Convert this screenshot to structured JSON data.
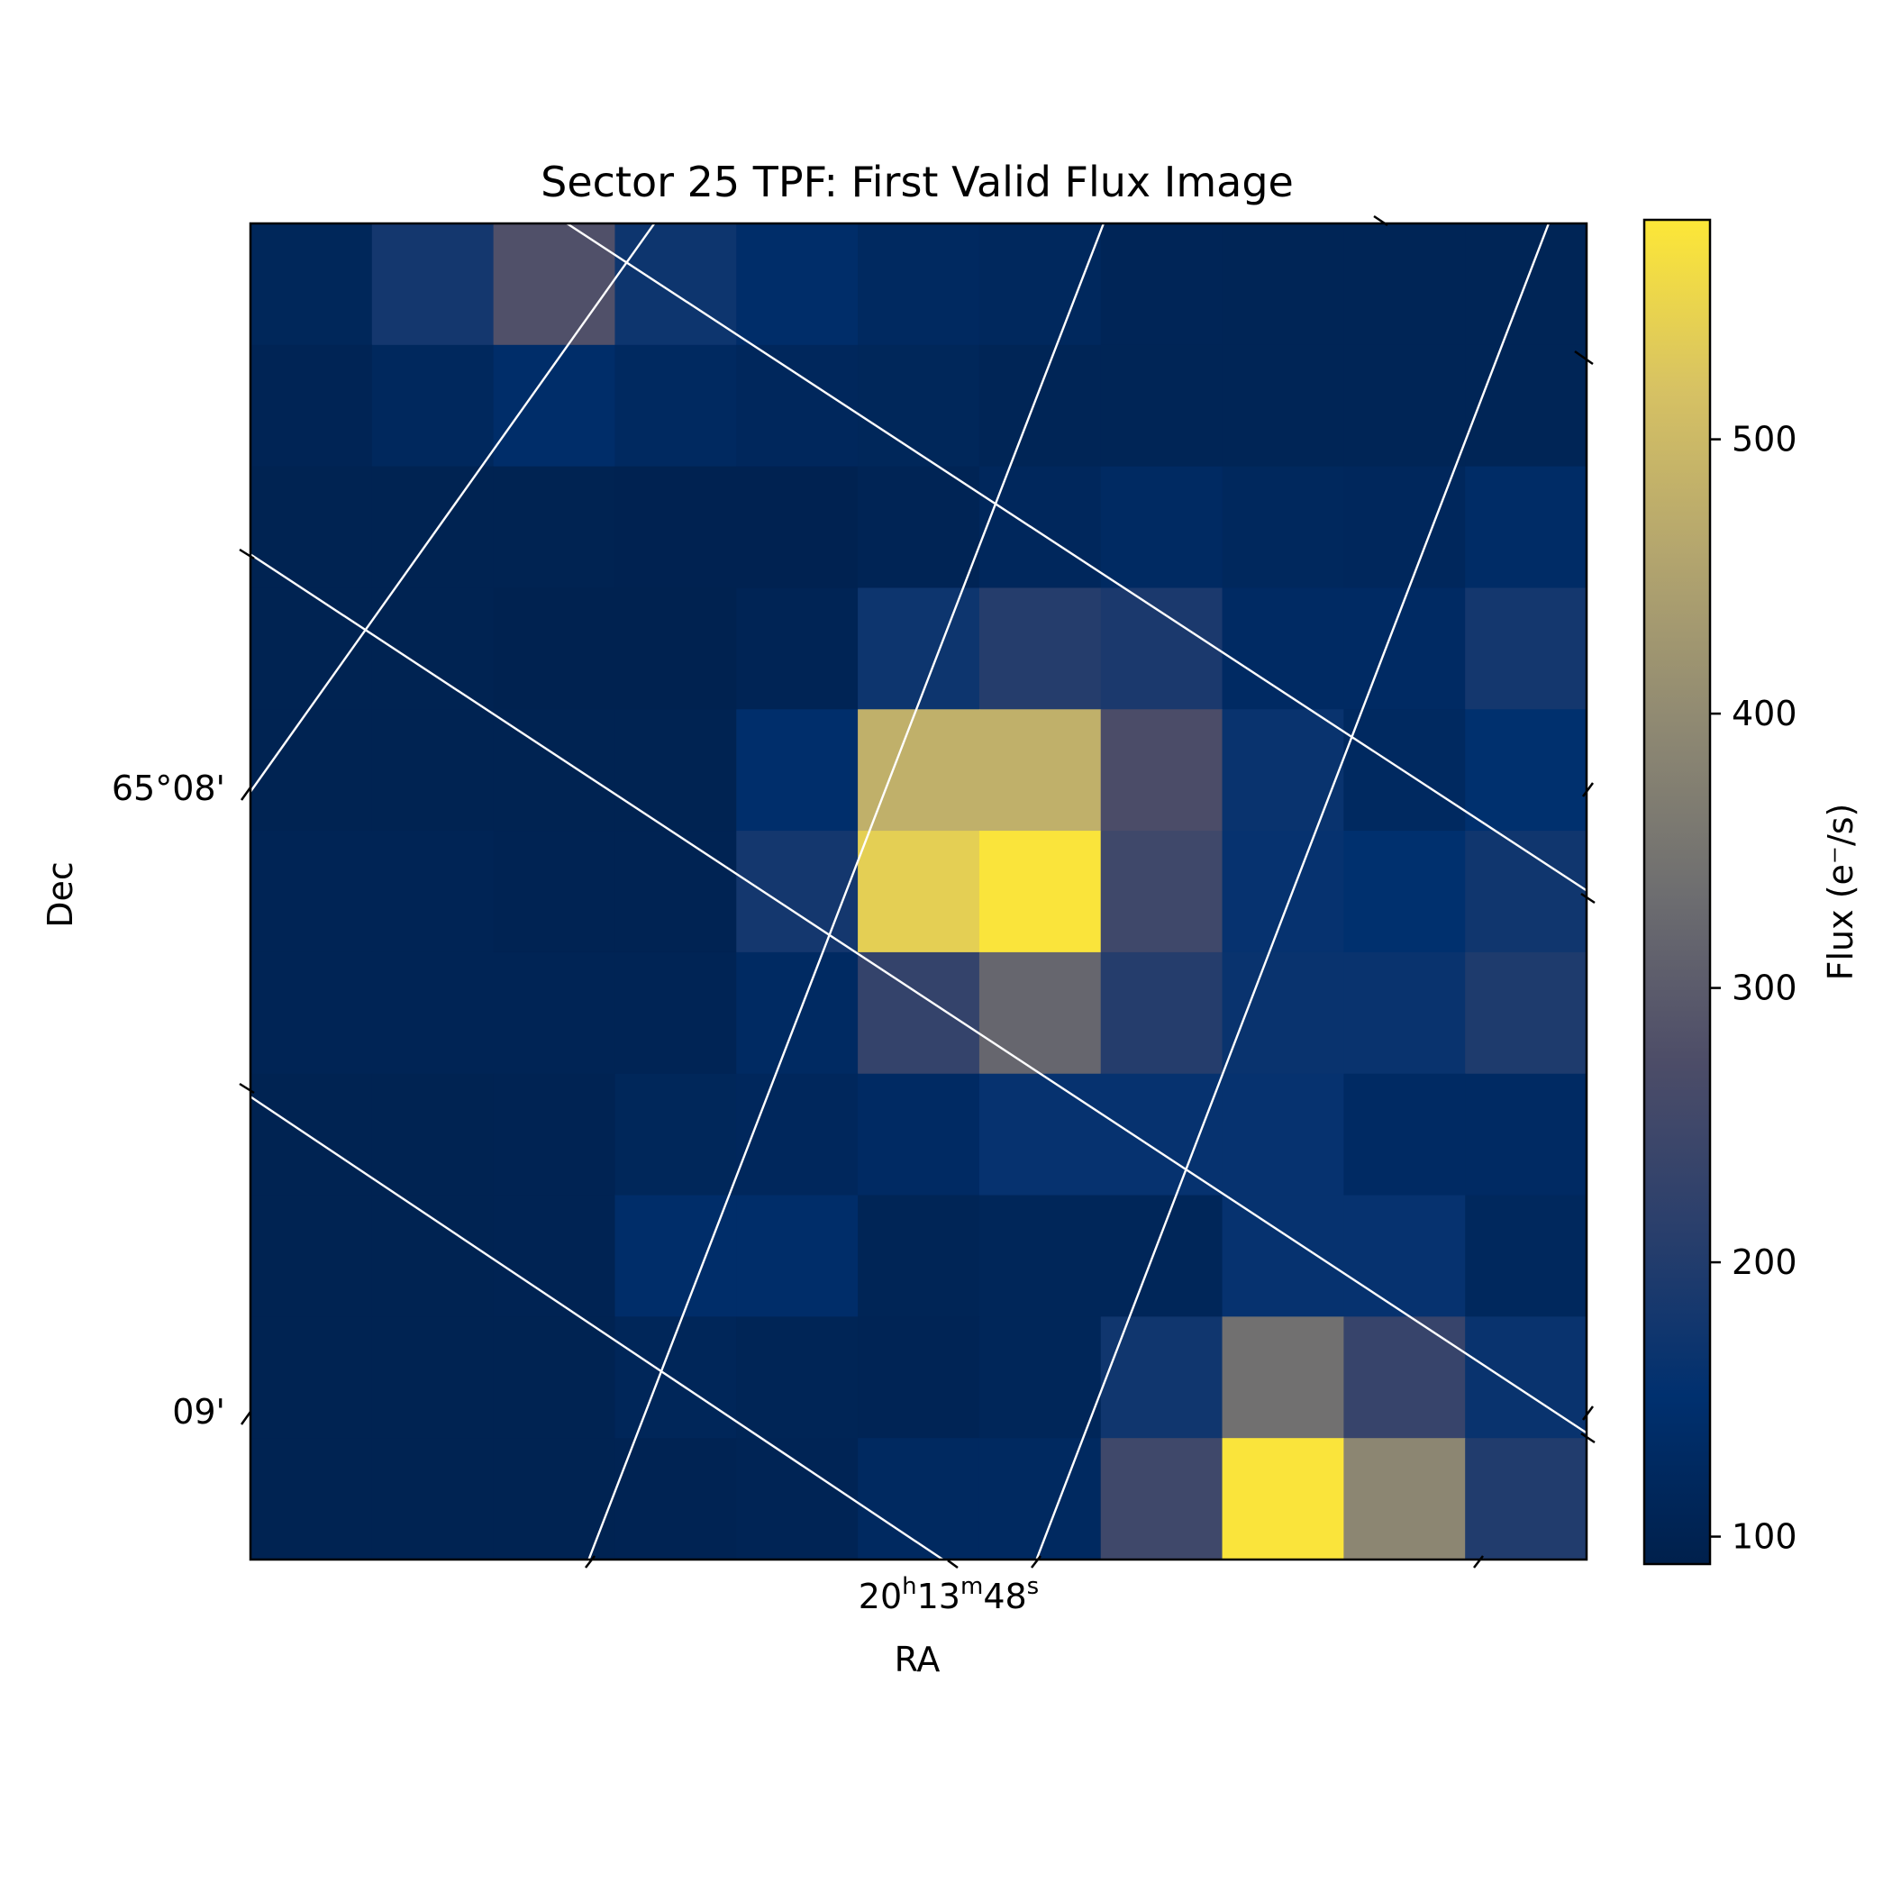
{
  "chart_data": {
    "type": "heatmap",
    "title": "Sector 25 TPF: First Valid Flux Image",
    "xlabel": "RA",
    "ylabel": "Dec",
    "x_tick_labels": [
      {
        "main": "20",
        "h": "h",
        "m_val": "13",
        "m": "m",
        "s_val": "48",
        "s": "s"
      }
    ],
    "y_tick_labels": [
      "65°08'",
      "09'"
    ],
    "colorbar": {
      "label": "Flux (e⁻/s)",
      "range": [
        90,
        580
      ],
      "ticks": [
        "100",
        "200",
        "300",
        "400",
        "500"
      ],
      "tick_values": [
        100,
        200,
        300,
        400,
        500
      ]
    },
    "colormap": "cividis",
    "colormap_stops": [
      "#00204c",
      "#00306f",
      "#2a3f6c",
      "#4d4d68",
      "#6e6e70",
      "#8f8972",
      "#b3a56e",
      "#d7c263",
      "#fde737"
    ],
    "grid": "on",
    "grid_color": "#ffffff",
    "rows": 11,
    "cols": 11,
    "values": [
      [
        115,
        180,
        280,
        170,
        140,
        125,
        120,
        110,
        108,
        108,
        108
      ],
      [
        105,
        120,
        140,
        125,
        118,
        115,
        108,
        108,
        108,
        108,
        108
      ],
      [
        100,
        100,
        100,
        98,
        98,
        105,
        118,
        128,
        120,
        118,
        135
      ],
      [
        100,
        100,
        97,
        97,
        105,
        170,
        205,
        190,
        130,
        130,
        180
      ],
      [
        100,
        100,
        100,
        100,
        145,
        480,
        480,
        270,
        165,
        125,
        150
      ],
      [
        105,
        105,
        103,
        103,
        180,
        540,
        575,
        250,
        160,
        150,
        175
      ],
      [
        105,
        105,
        105,
        105,
        128,
        230,
        320,
        205,
        165,
        165,
        195
      ],
      [
        100,
        100,
        102,
        115,
        118,
        130,
        160,
        160,
        160,
        130,
        130
      ],
      [
        100,
        100,
        102,
        140,
        140,
        108,
        113,
        113,
        160,
        160,
        120
      ],
      [
        100,
        100,
        100,
        113,
        108,
        105,
        113,
        175,
        340,
        235,
        165
      ],
      [
        100,
        100,
        100,
        102,
        105,
        125,
        125,
        250,
        575,
        390,
        200
      ]
    ]
  }
}
